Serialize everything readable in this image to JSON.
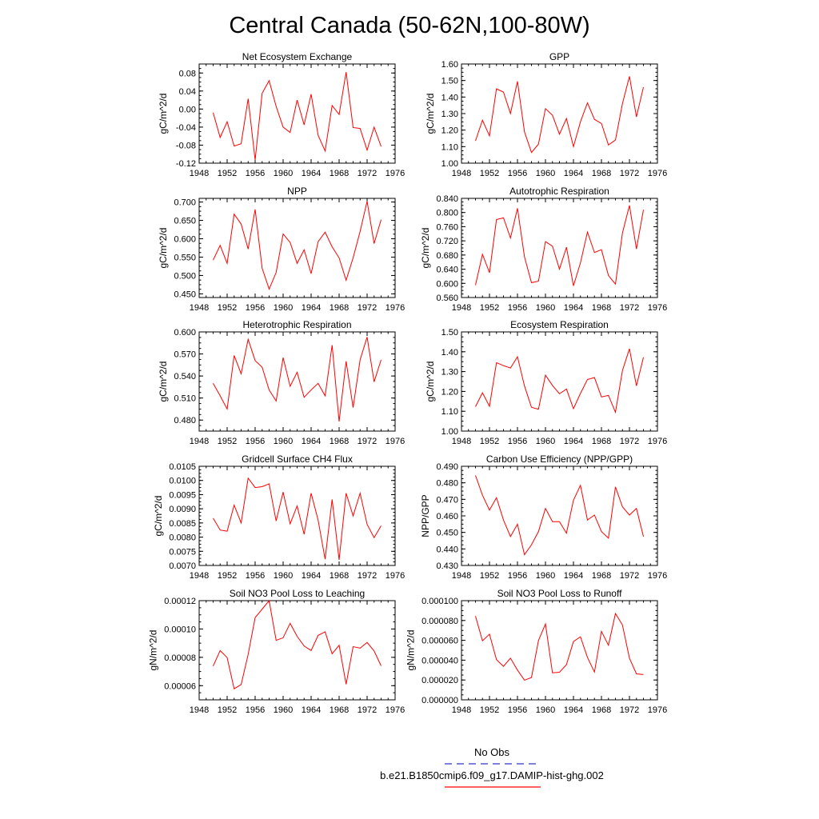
{
  "figure": {
    "title": "Central Canada (50-62N,100-80W)"
  },
  "legend": {
    "entries": [
      {
        "label": "No Obs",
        "color": "#3333cc",
        "style": "dashed"
      },
      {
        "label": "b.e21.B1850cmip6.f09_g17.DAMIP-hist-ghg.002",
        "color": "#ff0000",
        "style": "solid"
      }
    ]
  },
  "colors": {
    "series": "#ff0000",
    "axis": "#000000"
  },
  "chart_data": [
    {
      "type": "line",
      "title": "Net Ecosystem Exchange",
      "ylabel": "gC/m^2/d",
      "xlim": [
        1948,
        1976
      ],
      "xticks": [
        "1948",
        "1952",
        "1956",
        "1960",
        "1964",
        "1968",
        "1972",
        "1976"
      ],
      "ylim": [
        -0.12,
        0.1
      ],
      "yticks": [
        "-0.12",
        "-0.08",
        "-0.04",
        "0.00",
        "0.04",
        "0.08"
      ],
      "x": [
        1950,
        1951,
        1952,
        1953,
        1954,
        1955,
        1956,
        1957,
        1958,
        1959,
        1960,
        1961,
        1962,
        1963,
        1964,
        1965,
        1966,
        1967,
        1968,
        1969,
        1970,
        1971,
        1972,
        1973,
        1974
      ],
      "values": [
        -0.008,
        -0.063,
        -0.028,
        -0.082,
        -0.077,
        0.023,
        -0.113,
        0.035,
        0.063,
        0.006,
        -0.04,
        -0.052,
        0.02,
        -0.035,
        0.033,
        -0.058,
        -0.093,
        0.008,
        -0.012,
        0.082,
        -0.041,
        -0.043,
        -0.091,
        -0.04,
        -0.083
      ]
    },
    {
      "type": "line",
      "title": "GPP",
      "ylabel": "gC/m^2/d",
      "xlim": [
        1948,
        1976
      ],
      "xticks": [
        "1948",
        "1952",
        "1956",
        "1960",
        "1964",
        "1968",
        "1972",
        "1976"
      ],
      "ylim": [
        1.0,
        1.6
      ],
      "yticks": [
        "1.00",
        "1.10",
        "1.20",
        "1.30",
        "1.40",
        "1.50",
        "1.60"
      ],
      "x": [
        1950,
        1951,
        1952,
        1953,
        1954,
        1955,
        1956,
        1957,
        1958,
        1959,
        1960,
        1961,
        1962,
        1963,
        1964,
        1965,
        1966,
        1967,
        1968,
        1969,
        1970,
        1971,
        1972,
        1973,
        1974
      ],
      "values": [
        1.135,
        1.26,
        1.165,
        1.45,
        1.43,
        1.3,
        1.495,
        1.19,
        1.065,
        1.115,
        1.33,
        1.29,
        1.175,
        1.27,
        1.1,
        1.25,
        1.365,
        1.265,
        1.24,
        1.11,
        1.14,
        1.36,
        1.525,
        1.28,
        1.46
      ]
    },
    {
      "type": "line",
      "title": "NPP",
      "ylabel": "gC/m^2/d",
      "xlim": [
        1948,
        1976
      ],
      "xticks": [
        "1948",
        "1952",
        "1956",
        "1960",
        "1964",
        "1968",
        "1972",
        "1976"
      ],
      "ylim": [
        0.44,
        0.71
      ],
      "yticks": [
        "0.450",
        "0.500",
        "0.550",
        "0.600",
        "0.650",
        "0.700"
      ],
      "x": [
        1950,
        1951,
        1952,
        1953,
        1954,
        1955,
        1956,
        1957,
        1958,
        1959,
        1960,
        1961,
        1962,
        1963,
        1964,
        1965,
        1966,
        1967,
        1968,
        1969,
        1970,
        1971,
        1972,
        1973,
        1974
      ],
      "values": [
        0.542,
        0.582,
        0.533,
        0.667,
        0.64,
        0.572,
        0.68,
        0.52,
        0.463,
        0.508,
        0.613,
        0.59,
        0.533,
        0.57,
        0.505,
        0.592,
        0.618,
        0.578,
        0.548,
        0.487,
        0.548,
        0.62,
        0.702,
        0.587,
        0.652
      ]
    },
    {
      "type": "line",
      "title": "Autotrophic Respiration",
      "ylabel": "gC/m^2/d",
      "xlim": [
        1948,
        1976
      ],
      "xticks": [
        "1948",
        "1952",
        "1956",
        "1960",
        "1964",
        "1968",
        "1972",
        "1976"
      ],
      "ylim": [
        0.56,
        0.84
      ],
      "yticks": [
        "0.560",
        "0.600",
        "0.640",
        "0.680",
        "0.720",
        "0.760",
        "0.800",
        "0.840"
      ],
      "x": [
        1950,
        1951,
        1952,
        1953,
        1954,
        1955,
        1956,
        1957,
        1958,
        1959,
        1960,
        1961,
        1962,
        1963,
        1964,
        1965,
        1966,
        1967,
        1968,
        1969,
        1970,
        1971,
        1972,
        1973,
        1974
      ],
      "values": [
        0.595,
        0.682,
        0.63,
        0.78,
        0.785,
        0.728,
        0.812,
        0.675,
        0.602,
        0.606,
        0.718,
        0.705,
        0.64,
        0.702,
        0.593,
        0.658,
        0.745,
        0.687,
        0.695,
        0.622,
        0.598,
        0.742,
        0.82,
        0.697,
        0.808
      ]
    },
    {
      "type": "line",
      "title": "Heterotrophic Respiration",
      "ylabel": "gC/m^2/d",
      "xlim": [
        1948,
        1976
      ],
      "xticks": [
        "1948",
        "1952",
        "1956",
        "1960",
        "1964",
        "1968",
        "1972",
        "1976"
      ],
      "ylim": [
        0.465,
        0.6
      ],
      "yticks": [
        "0.480",
        "0.510",
        "0.540",
        "0.570",
        "0.600"
      ],
      "x": [
        1950,
        1951,
        1952,
        1953,
        1954,
        1955,
        1956,
        1957,
        1958,
        1959,
        1960,
        1961,
        1962,
        1963,
        1964,
        1965,
        1966,
        1967,
        1968,
        1969,
        1970,
        1971,
        1972,
        1973,
        1974
      ],
      "values": [
        0.53,
        0.513,
        0.495,
        0.568,
        0.543,
        0.59,
        0.561,
        0.552,
        0.521,
        0.506,
        0.565,
        0.526,
        0.545,
        0.511,
        0.521,
        0.53,
        0.513,
        0.582,
        0.478,
        0.56,
        0.497,
        0.562,
        0.593,
        0.532,
        0.562
      ]
    },
    {
      "type": "line",
      "title": "Ecosystem Respiration",
      "ylabel": "gC/m^2/d",
      "xlim": [
        1948,
        1976
      ],
      "xticks": [
        "1948",
        "1952",
        "1956",
        "1960",
        "1964",
        "1968",
        "1972",
        "1976"
      ],
      "ylim": [
        1.0,
        1.5
      ],
      "yticks": [
        "1.00",
        "1.10",
        "1.20",
        "1.30",
        "1.40",
        "1.50"
      ],
      "x": [
        1950,
        1951,
        1952,
        1953,
        1954,
        1955,
        1956,
        1957,
        1958,
        1959,
        1960,
        1961,
        1962,
        1963,
        1964,
        1965,
        1966,
        1967,
        1968,
        1969,
        1970,
        1971,
        1972,
        1973,
        1974
      ],
      "values": [
        1.123,
        1.193,
        1.125,
        1.345,
        1.33,
        1.318,
        1.375,
        1.228,
        1.12,
        1.11,
        1.282,
        1.23,
        1.188,
        1.212,
        1.113,
        1.19,
        1.26,
        1.27,
        1.172,
        1.18,
        1.095,
        1.305,
        1.415,
        1.228,
        1.372
      ]
    },
    {
      "type": "line",
      "title": "Gridcell Surface CH4 Flux",
      "ylabel": "gC/m^2/d",
      "xlim": [
        1948,
        1976
      ],
      "xticks": [
        "1948",
        "1952",
        "1956",
        "1960",
        "1964",
        "1968",
        "1972",
        "1976"
      ],
      "ylim": [
        0.007,
        0.0105
      ],
      "yticks": [
        "0.0070",
        "0.0075",
        "0.0080",
        "0.0085",
        "0.0090",
        "0.0095",
        "0.0100",
        "0.0105"
      ],
      "x": [
        1950,
        1951,
        1952,
        1953,
        1954,
        1955,
        1956,
        1957,
        1958,
        1959,
        1960,
        1961,
        1962,
        1963,
        1964,
        1965,
        1966,
        1967,
        1968,
        1969,
        1970,
        1971,
        1972,
        1973,
        1974
      ],
      "values": [
        0.00867,
        0.00825,
        0.00821,
        0.00913,
        0.0085,
        0.01008,
        0.00975,
        0.00978,
        0.00988,
        0.00857,
        0.00959,
        0.00847,
        0.0091,
        0.0081,
        0.00955,
        0.0086,
        0.00722,
        0.00933,
        0.0072,
        0.00955,
        0.00875,
        0.00955,
        0.00845,
        0.00798,
        0.0084
      ]
    },
    {
      "type": "line",
      "title": "Carbon Use Efficiency (NPP/GPP)",
      "ylabel": "NPP/GPP",
      "xlim": [
        1948,
        1976
      ],
      "xticks": [
        "1948",
        "1952",
        "1956",
        "1960",
        "1964",
        "1968",
        "1972",
        "1976"
      ],
      "ylim": [
        0.43,
        0.49
      ],
      "yticks": [
        "0.430",
        "0.440",
        "0.450",
        "0.460",
        "0.470",
        "0.480",
        "0.490"
      ],
      "x": [
        1950,
        1951,
        1952,
        1953,
        1954,
        1955,
        1956,
        1957,
        1958,
        1959,
        1960,
        1961,
        1962,
        1963,
        1964,
        1965,
        1966,
        1967,
        1968,
        1969,
        1970,
        1971,
        1972,
        1973,
        1974
      ],
      "values": [
        0.4845,
        0.4725,
        0.4635,
        0.471,
        0.4575,
        0.4475,
        0.455,
        0.4365,
        0.4425,
        0.4505,
        0.4645,
        0.4565,
        0.4565,
        0.4495,
        0.4695,
        0.4785,
        0.4575,
        0.4605,
        0.4505,
        0.4465,
        0.4775,
        0.4655,
        0.4605,
        0.4645,
        0.4475
      ]
    },
    {
      "type": "line",
      "title": "Soil NO3 Pool Loss to Leaching",
      "ylabel": "gN/m^2/d",
      "xlim": [
        1948,
        1976
      ],
      "xticks": [
        "1948",
        "1952",
        "1956",
        "1960",
        "1964",
        "1968",
        "1972",
        "1976"
      ],
      "ylim": [
        5e-05,
        0.00012
      ],
      "yticks": [
        "0.00006",
        "0.00008",
        "0.00010",
        "0.00012"
      ],
      "x": [
        1950,
        1951,
        1952,
        1953,
        1954,
        1955,
        1956,
        1957,
        1958,
        1959,
        1960,
        1961,
        1962,
        1963,
        1964,
        1965,
        1966,
        1967,
        1968,
        1969,
        1970,
        1971,
        1972,
        1973,
        1974
      ],
      "values": [
        7.38e-05,
        8.48e-05,
        7.98e-05,
        5.78e-05,
        6.08e-05,
        8.2e-05,
        0.000108,
        0.000114,
        0.00012,
        9.2e-05,
        9.38e-05,
        0.000104,
        9.48e-05,
        8.8e-05,
        8.48e-05,
        9.55e-05,
        9.8e-05,
        8.25e-05,
        8.85e-05,
        6.1e-05,
        8.75e-05,
        8.65e-05,
        9.05e-05,
        8.45e-05,
        7.4e-05
      ]
    },
    {
      "type": "line",
      "title": "Soil NO3 Pool Loss to Runoff",
      "ylabel": "gN/m^2/d",
      "xlim": [
        1948,
        1976
      ],
      "xticks": [
        "1948",
        "1952",
        "1956",
        "1960",
        "1964",
        "1968",
        "1972",
        "1976"
      ],
      "ylim": [
        0.0,
        0.0001
      ],
      "yticks": [
        "0.000000",
        "0.000020",
        "0.000040",
        "0.000060",
        "0.000080",
        "0.000100"
      ],
      "x": [
        1950,
        1951,
        1952,
        1953,
        1954,
        1955,
        1956,
        1957,
        1958,
        1959,
        1960,
        1961,
        1962,
        1963,
        1964,
        1965,
        1966,
        1967,
        1968,
        1969,
        1970,
        1971,
        1972,
        1973,
        1974
      ],
      "values": [
        8.45e-05,
        5.95e-05,
        6.62e-05,
        4.05e-05,
        3.38e-05,
        4.2e-05,
        3e-05,
        1.98e-05,
        2.25e-05,
        5.98e-05,
        7.65e-05,
        2.72e-05,
        2.78e-05,
        3.55e-05,
        5.88e-05,
        6.35e-05,
        4.28e-05,
        2.8e-05,
        6.9e-05,
        5.5e-05,
        8.7e-05,
        7.55e-05,
        4.2e-05,
        2.62e-05,
        2.55e-05
      ]
    }
  ]
}
